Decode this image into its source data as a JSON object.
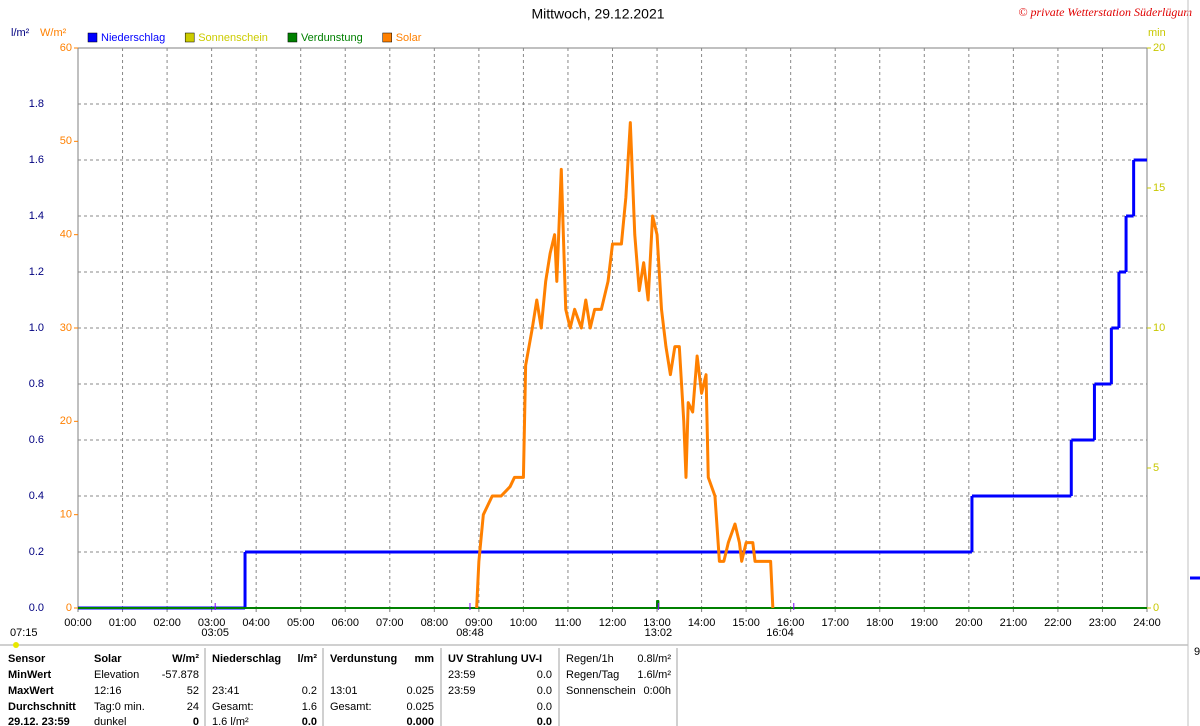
{
  "chart_data": {
    "type": "line",
    "title": "Mittwoch, 29.12.2021",
    "copyright": "© private Wetterstation Süderlügum",
    "ylabel": "l/m²",
    "y2label": "W/m²",
    "y3label": "min",
    "xlim": [
      0,
      24
    ],
    "xticks": [
      {
        "value": 0,
        "label": "00:00"
      },
      {
        "value": 1,
        "label": "01:00"
      },
      {
        "value": 2,
        "label": "02:00"
      },
      {
        "value": 3,
        "label": "03:00"
      },
      {
        "value": 4,
        "label": "04:00"
      },
      {
        "value": 5,
        "label": "05:00"
      },
      {
        "value": 6,
        "label": "06:00"
      },
      {
        "value": 7,
        "label": "07:00"
      },
      {
        "value": 8,
        "label": "08:00"
      },
      {
        "value": 9,
        "label": "09:00"
      },
      {
        "value": 10,
        "label": "10:00"
      },
      {
        "value": 11,
        "label": "11:00"
      },
      {
        "value": 12,
        "label": "12:00"
      },
      {
        "value": 13,
        "label": "13:00"
      },
      {
        "value": 14,
        "label": "14:00"
      },
      {
        "value": 15,
        "label": "15:00"
      },
      {
        "value": 16,
        "label": "16:00"
      },
      {
        "value": 17,
        "label": "17:00"
      },
      {
        "value": 18,
        "label": "18:00"
      },
      {
        "value": 19,
        "label": "19:00"
      },
      {
        "value": 20,
        "label": "20:00"
      },
      {
        "value": 21,
        "label": "21:00"
      },
      {
        "value": 22,
        "label": "22:00"
      },
      {
        "value": 23,
        "label": "23:00"
      },
      {
        "value": 24,
        "label": "24:00"
      }
    ],
    "ylim": [
      0,
      2
    ],
    "yticks": [
      {
        "value": 0,
        "label": "0.0"
      },
      0.2,
      0.4,
      0.6,
      0.8,
      {
        "value": 1,
        "label": "1.0"
      },
      1.2,
      1.4,
      1.6,
      1.8
    ],
    "y2lim": [
      0,
      60
    ],
    "y2ticks": [
      0,
      10,
      20,
      30,
      40,
      50,
      60
    ],
    "y3lim": [
      0,
      20
    ],
    "y3ticks": [
      0,
      5,
      10,
      15,
      20
    ],
    "grid": true,
    "series": [
      {
        "name": "Niederschlag",
        "color": "#0000ff",
        "axis": "y",
        "step": true,
        "x": [
          0,
          3.75,
          20.07,
          22.3,
          22.82,
          23.2,
          23.37,
          23.53,
          23.7
        ],
        "values": [
          0,
          0.2,
          0.4,
          0.6,
          0.8,
          1.0,
          1.2,
          1.4,
          1.6
        ]
      },
      {
        "name": "Sonnenschein",
        "color": "#cccc00",
        "axis": "y3",
        "x": [
          0,
          24
        ],
        "values": [
          0,
          0
        ]
      },
      {
        "name": "Verdunstung",
        "color": "#008000",
        "axis": "y",
        "x": [
          0,
          13.0,
          13.0,
          13.03,
          13.03,
          24
        ],
        "values": [
          0,
          0,
          0.025,
          0.025,
          0,
          0
        ]
      },
      {
        "name": "Solar",
        "color": "#ff8000",
        "axis": "y2",
        "x": [
          8.95,
          9.0,
          9.1,
          9.3,
          9.5,
          9.7,
          9.8,
          10.0,
          10.05,
          10.2,
          10.3,
          10.4,
          10.5,
          10.6,
          10.7,
          10.75,
          10.85,
          10.95,
          11.05,
          11.15,
          11.3,
          11.4,
          11.5,
          11.6,
          11.75,
          11.9,
          12.0,
          12.2,
          12.3,
          12.4,
          12.5,
          12.6,
          12.7,
          12.8,
          12.9,
          13.0,
          13.1,
          13.2,
          13.3,
          13.4,
          13.5,
          13.6,
          13.65,
          13.7,
          13.8,
          13.9,
          14.0,
          14.1,
          14.15,
          14.3,
          14.4,
          14.5,
          14.6,
          14.75,
          14.85,
          14.9,
          15.0,
          15.15,
          15.2,
          15.55,
          15.6
        ],
        "values": [
          0,
          5,
          10,
          12,
          12,
          13,
          14,
          14,
          26,
          30,
          33,
          30,
          35,
          38,
          40,
          35,
          47,
          32,
          30,
          32,
          30,
          33,
          30,
          32,
          32,
          35,
          39,
          39,
          44,
          52,
          40,
          34,
          37,
          33,
          42,
          40,
          32,
          28,
          25,
          28,
          28,
          20,
          14,
          22,
          21,
          27,
          23,
          25,
          14,
          12,
          5,
          5,
          7,
          9,
          7,
          5,
          7,
          7,
          5,
          5,
          0
        ]
      }
    ],
    "day_length": "07:15",
    "annotations": [
      {
        "x": 3.08,
        "label": "03:05"
      },
      {
        "x": 8.8,
        "label": "08:48"
      },
      {
        "x": 13.03,
        "label": "13:02"
      },
      {
        "x": 16.07,
        "label": "16:04"
      }
    ]
  },
  "stats": {
    "header": [
      "Sensor",
      "Solar",
      "W/m²",
      "Niederschlag",
      "l/m²",
      "Verdunstung",
      "mm",
      "UV Strahlung UV-I",
      null
    ],
    "rows": [
      [
        "MinWert",
        "Elevation",
        "-57.878",
        null,
        null,
        null,
        null,
        "23:59",
        "0.0"
      ],
      [
        "MaxWert",
        "12:16",
        "52",
        "23:41",
        "0.2",
        "13:01",
        "0.025",
        "23:59",
        "0.0"
      ],
      [
        "Durchschnitt",
        "Tag:0 min.",
        "24",
        "Gesamt:",
        "1.6",
        "Gesamt:",
        "0.025",
        null,
        "0.0"
      ],
      [
        "29.12. 23:59",
        "dunkel",
        "0",
        "1.6 l/m²",
        "0.0",
        null,
        "0.000",
        null,
        "0.0"
      ]
    ],
    "side": [
      [
        "Regen/1h",
        "0.8l/m²"
      ],
      [
        "Regen/Tag",
        "1.6l/m²"
      ],
      [
        "Sonnenschein",
        "0:00h"
      ]
    ],
    "cut_label": "9"
  }
}
